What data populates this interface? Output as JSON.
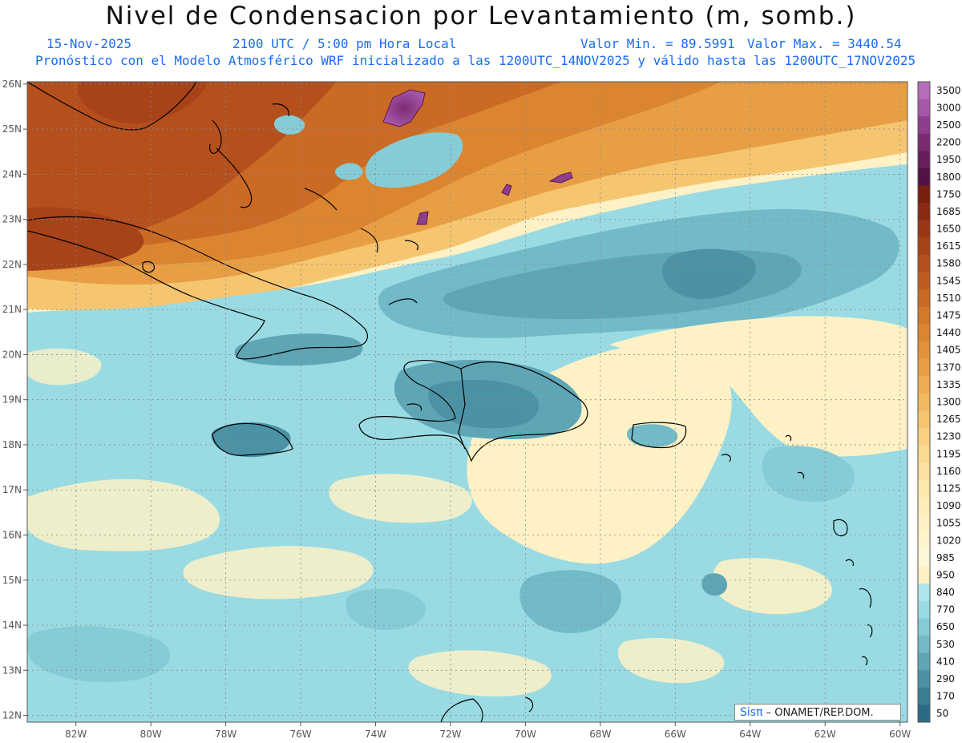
{
  "header": {
    "title": "Nivel de Condensacion por Levantamiento (m, somb.)",
    "date": "15-Nov-2025",
    "time": "2100 UTC / 5:00 pm Hora Local",
    "min_label": "Valor Min. = 89.5991",
    "max_label": "Valor Max. = 3440.54",
    "model_info": "Pronóstico con el Modelo Atmosférico WRF inicializado a las 1200UTC_14NOV2025 y válido hasta las  1200UTC_17NOV2025"
  },
  "credit": {
    "logo": "Sisπ",
    "text": "– ONAMET/REP.DOM."
  },
  "map": {
    "type": "heatmap",
    "x_ticks": [
      "82W",
      "80W",
      "78W",
      "76W",
      "74W",
      "72W",
      "70W",
      "68W",
      "66W",
      "64W",
      "62W",
      "60W"
    ],
    "x_values": [
      -82,
      -80,
      -78,
      -76,
      -74,
      -72,
      -70,
      -68,
      -66,
      -64,
      -62,
      -60
    ],
    "y_ticks": [
      "26N",
      "25N",
      "24N",
      "23N",
      "22N",
      "21N",
      "20N",
      "19N",
      "18N",
      "17N",
      "16N",
      "15N",
      "14N",
      "13N",
      "12N"
    ],
    "y_values": [
      26,
      25,
      24,
      23,
      22,
      21,
      20,
      19,
      18,
      17,
      16,
      15,
      14,
      13,
      12
    ],
    "xlim": [
      -83.3,
      -59.8
    ],
    "ylim": [
      11.85,
      26.05
    ]
  },
  "colorbar": {
    "levels": [
      "3500",
      "3000",
      "2500",
      "2200",
      "1950",
      "1800",
      "1750",
      "1685",
      "1650",
      "1615",
      "1580",
      "1545",
      "1510",
      "1475",
      "1440",
      "1405",
      "1370",
      "1335",
      "1300",
      "1265",
      "1230",
      "1195",
      "1160",
      "1125",
      "1090",
      "1055",
      "1020",
      "985",
      "950",
      "840",
      "770",
      "650",
      "530",
      "410",
      "290",
      "170",
      "50"
    ],
    "colors": [
      "#b56db8",
      "#a557a8",
      "#8e3e8c",
      "#7a2b72",
      "#661e5c",
      "#521246",
      "#7a1e10",
      "#8a2a12",
      "#9a3614",
      "#a84218",
      "#b54f1c",
      "#c05c20",
      "#ca6a24",
      "#d4782a",
      "#dc8530",
      "#e29238",
      "#e89f44",
      "#eeab52",
      "#f2b860",
      "#f5c570",
      "#f8d080",
      "#fad990",
      "#fce1a0",
      "#fde8ae",
      "#fdedba",
      "#fdf1c5",
      "#fdf4ce",
      "#fef7d6",
      "#fdf0c2",
      "#aee6ec",
      "#9adbe3",
      "#86ccd6",
      "#72bac7",
      "#5ea6b6",
      "#4b92a5",
      "#3a7e94",
      "#2c6b83"
    ],
    "colors_low": [
      "#aee6ec",
      "#9adbe3",
      "#86ccd6",
      "#72bac7",
      "#5ea6b6",
      "#4b92a5",
      "#3a7e94",
      "#2c6b83"
    ]
  }
}
